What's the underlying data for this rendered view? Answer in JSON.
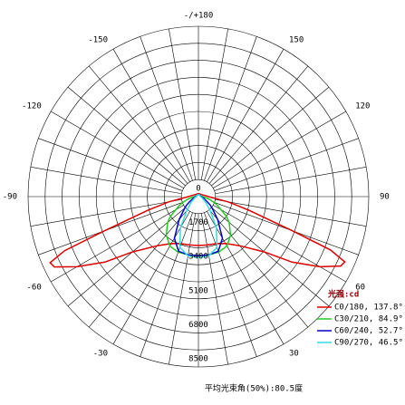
{
  "chart_data": {
    "type": "polar",
    "title": "平均光束角(50%):80.5度",
    "legend_title": "光强:cd",
    "legend_position": "bottom-right",
    "rlim": [
      0,
      8500
    ],
    "rticks": [
      0,
      1700,
      3400,
      5100,
      6800,
      8500
    ],
    "angle_ticks": [
      {
        "value": 180,
        "label": "-/+180"
      },
      150,
      120,
      90,
      60,
      30,
      -30,
      -60,
      -90,
      -120,
      -150
    ],
    "theta": [
      -180,
      -150,
      -120,
      -90,
      -80,
      -75,
      -70,
      -68,
      -66,
      -64,
      -60,
      -55,
      -50,
      -40,
      -30,
      -20,
      -10,
      0,
      10,
      20,
      30,
      40,
      50,
      55,
      60,
      64,
      66,
      68,
      70,
      75,
      80,
      90,
      120,
      150,
      180
    ],
    "series": [
      {
        "name": "C0/180, 137.8°",
        "color": "#dd0000",
        "values": [
          150,
          150,
          200,
          500,
          1500,
          2600,
          5000,
          7200,
          8100,
          8000,
          7000,
          5700,
          4300,
          3200,
          2700,
          2500,
          2450,
          2440,
          2450,
          2500,
          2700,
          3200,
          4300,
          5700,
          7000,
          7900,
          8000,
          7100,
          5000,
          2600,
          1500,
          500,
          200,
          150,
          150
        ]
      },
      {
        "name": "C30/210, 84.9°",
        "color": "#22cc22",
        "values": [
          100,
          100,
          100,
          200,
          400,
          600,
          800,
          900,
          1000,
          1100,
          1300,
          1700,
          2000,
          2500,
          2850,
          2950,
          2950,
          2940,
          2950,
          2950,
          2850,
          2500,
          2000,
          1700,
          1300,
          1100,
          1000,
          900,
          800,
          600,
          400,
          200,
          100,
          100,
          100
        ]
      },
      {
        "name": "C60/240, 52.7°",
        "color": "#0000cc",
        "values": [
          100,
          100,
          100,
          150,
          200,
          250,
          300,
          320,
          350,
          380,
          500,
          700,
          900,
          1500,
          2400,
          2900,
          2950,
          2950,
          2950,
          2900,
          2400,
          1500,
          900,
          700,
          500,
          380,
          350,
          320,
          300,
          250,
          200,
          150,
          100,
          100,
          100
        ]
      },
      {
        "name": "C90/270, 46.5°",
        "color": "#33dddd",
        "values": [
          100,
          100,
          100,
          100,
          150,
          180,
          200,
          210,
          220,
          230,
          300,
          400,
          500,
          900,
          1800,
          2700,
          3000,
          3050,
          3000,
          2700,
          1800,
          900,
          500,
          400,
          300,
          230,
          220,
          210,
          200,
          180,
          150,
          100,
          100,
          100,
          100
        ]
      }
    ]
  }
}
